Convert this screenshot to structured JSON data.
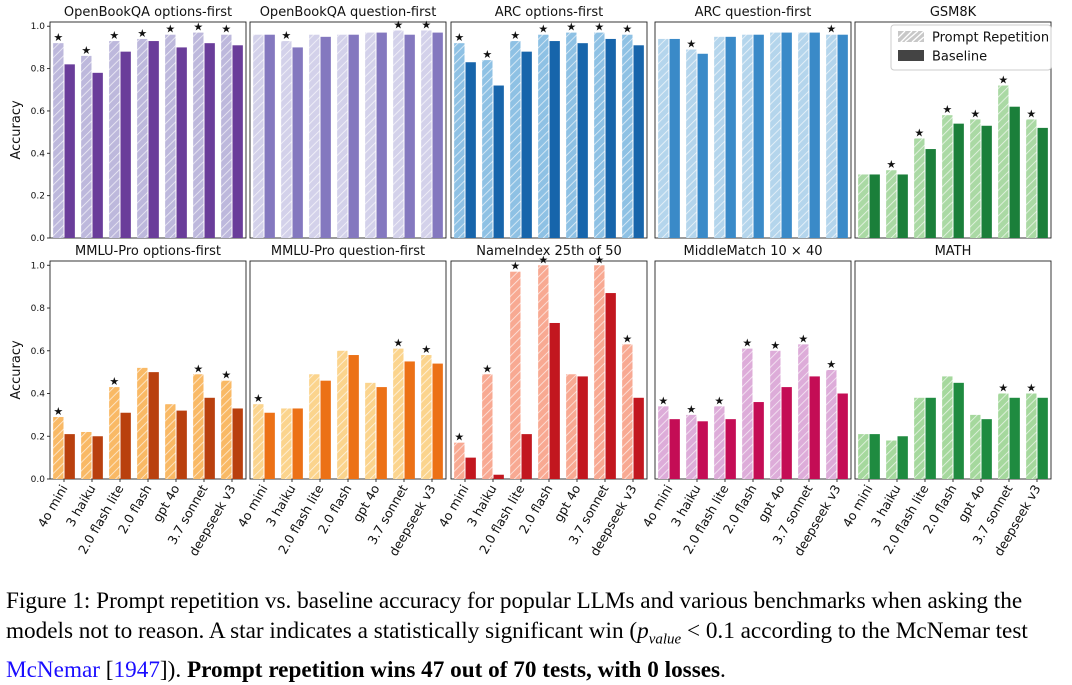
{
  "chart_data": {
    "type": "bar",
    "models": [
      "4o mini",
      "3 haiku",
      "2.0 flash lite",
      "2.0 flash",
      "gpt 4o",
      "3.7 sonnet",
      "deepseek v3"
    ],
    "ylabel": "Accuracy",
    "yticks": [
      "0.0",
      "0.2",
      "0.4",
      "0.6",
      "0.8",
      "1.0"
    ],
    "ylim": [
      0,
      1.02
    ],
    "legend": {
      "prompt_repetition": "Prompt Repetition",
      "baseline": "Baseline",
      "location": "top-right of GSM8K panel"
    },
    "significance_marker": "★",
    "panels": [
      {
        "title": "OpenBookQA options-first",
        "rep": "#bdb8dc",
        "base": "#6a3d9a",
        "prompt_repetition": [
          0.92,
          0.86,
          0.93,
          0.94,
          0.96,
          0.97,
          0.96
        ],
        "baseline": [
          0.82,
          0.78,
          0.88,
          0.93,
          0.9,
          0.92,
          0.91
        ],
        "significant": [
          true,
          true,
          true,
          true,
          true,
          true,
          true
        ]
      },
      {
        "title": "OpenBookQA question-first",
        "rep": "#d3d1ea",
        "base": "#8478bf",
        "prompt_repetition": [
          0.96,
          0.93,
          0.96,
          0.96,
          0.97,
          0.98,
          0.98
        ],
        "baseline": [
          0.96,
          0.9,
          0.95,
          0.96,
          0.97,
          0.96,
          0.97
        ],
        "significant": [
          false,
          true,
          false,
          false,
          false,
          true,
          true
        ]
      },
      {
        "title": "ARC options-first",
        "rep": "#8ec1e4",
        "base": "#1765ab",
        "prompt_repetition": [
          0.92,
          0.84,
          0.93,
          0.96,
          0.97,
          0.97,
          0.96
        ],
        "baseline": [
          0.83,
          0.72,
          0.88,
          0.93,
          0.92,
          0.94,
          0.91
        ],
        "significant": [
          true,
          true,
          true,
          true,
          true,
          true,
          true
        ]
      },
      {
        "title": "ARC question-first",
        "rep": "#b4d5ec",
        "base": "#3a8ac8",
        "prompt_repetition": [
          0.94,
          0.89,
          0.95,
          0.96,
          0.97,
          0.97,
          0.96
        ],
        "baseline": [
          0.94,
          0.87,
          0.95,
          0.96,
          0.97,
          0.97,
          0.96
        ],
        "significant": [
          false,
          true,
          false,
          false,
          false,
          false,
          true
        ]
      },
      {
        "title": "GSM8K",
        "rep": "#aad9a4",
        "base": "#1b7f3a",
        "prompt_repetition": [
          0.3,
          0.32,
          0.47,
          0.58,
          0.56,
          0.72,
          0.56
        ],
        "baseline": [
          0.3,
          0.3,
          0.42,
          0.54,
          0.53,
          0.62,
          0.52
        ],
        "significant": [
          false,
          true,
          true,
          true,
          true,
          true,
          true
        ]
      },
      {
        "title": "MMLU-Pro options-first",
        "rep": "#f9b965",
        "base": "#b9400e",
        "prompt_repetition": [
          0.29,
          0.22,
          0.43,
          0.52,
          0.35,
          0.49,
          0.46
        ],
        "baseline": [
          0.21,
          0.2,
          0.31,
          0.5,
          0.32,
          0.38,
          0.33
        ],
        "significant": [
          true,
          false,
          true,
          false,
          false,
          true,
          true
        ]
      },
      {
        "title": "MMLU-Pro question-first",
        "rep": "#fbd48d",
        "base": "#ec7116",
        "prompt_repetition": [
          0.35,
          0.33,
          0.49,
          0.6,
          0.45,
          0.61,
          0.58
        ],
        "baseline": [
          0.31,
          0.33,
          0.46,
          0.58,
          0.43,
          0.55,
          0.54
        ],
        "significant": [
          true,
          false,
          false,
          false,
          false,
          true,
          true
        ]
      },
      {
        "title": "NameIndex 25th of 50",
        "rep": "#f8a992",
        "base": "#c2171f",
        "prompt_repetition": [
          0.17,
          0.49,
          0.97,
          1.0,
          0.49,
          1.0,
          0.63
        ],
        "baseline": [
          0.1,
          0.02,
          0.21,
          0.73,
          0.48,
          0.87,
          0.38
        ],
        "significant": [
          true,
          true,
          true,
          true,
          false,
          true,
          true
        ]
      },
      {
        "title": "MiddleMatch 10 × 40",
        "rep": "#ddacd9",
        "base": "#c40d55",
        "prompt_repetition": [
          0.34,
          0.3,
          0.34,
          0.61,
          0.6,
          0.63,
          0.51
        ],
        "baseline": [
          0.28,
          0.27,
          0.28,
          0.36,
          0.43,
          0.48,
          0.4
        ],
        "significant": [
          true,
          true,
          true,
          true,
          true,
          true,
          true
        ]
      },
      {
        "title": "MATH",
        "rep": "#a5d89d",
        "base": "#1f8b40",
        "prompt_repetition": [
          0.21,
          0.18,
          0.38,
          0.48,
          0.3,
          0.4,
          0.4
        ],
        "baseline": [
          0.21,
          0.2,
          0.38,
          0.45,
          0.28,
          0.38,
          0.38
        ],
        "significant": [
          false,
          false,
          false,
          false,
          false,
          true,
          true
        ]
      }
    ]
  },
  "caption": {
    "label": "Figure 1:",
    "text_part1": "Prompt repetition vs. baseline accuracy for popular LLMs and various benchmarks when asking the models not to reason. A star indicates a statistically significant win (",
    "p_symbol": "p",
    "p_sub": "value",
    "p_rest": " < 0.1 according to the McNemar test ",
    "cite_name": "McNemar",
    "cite_open": " [",
    "cite_year": "1947",
    "cite_close": "]). ",
    "bold_text": "Prompt repetition wins 47 out of 70 tests, with 0 losses",
    "end": "."
  }
}
